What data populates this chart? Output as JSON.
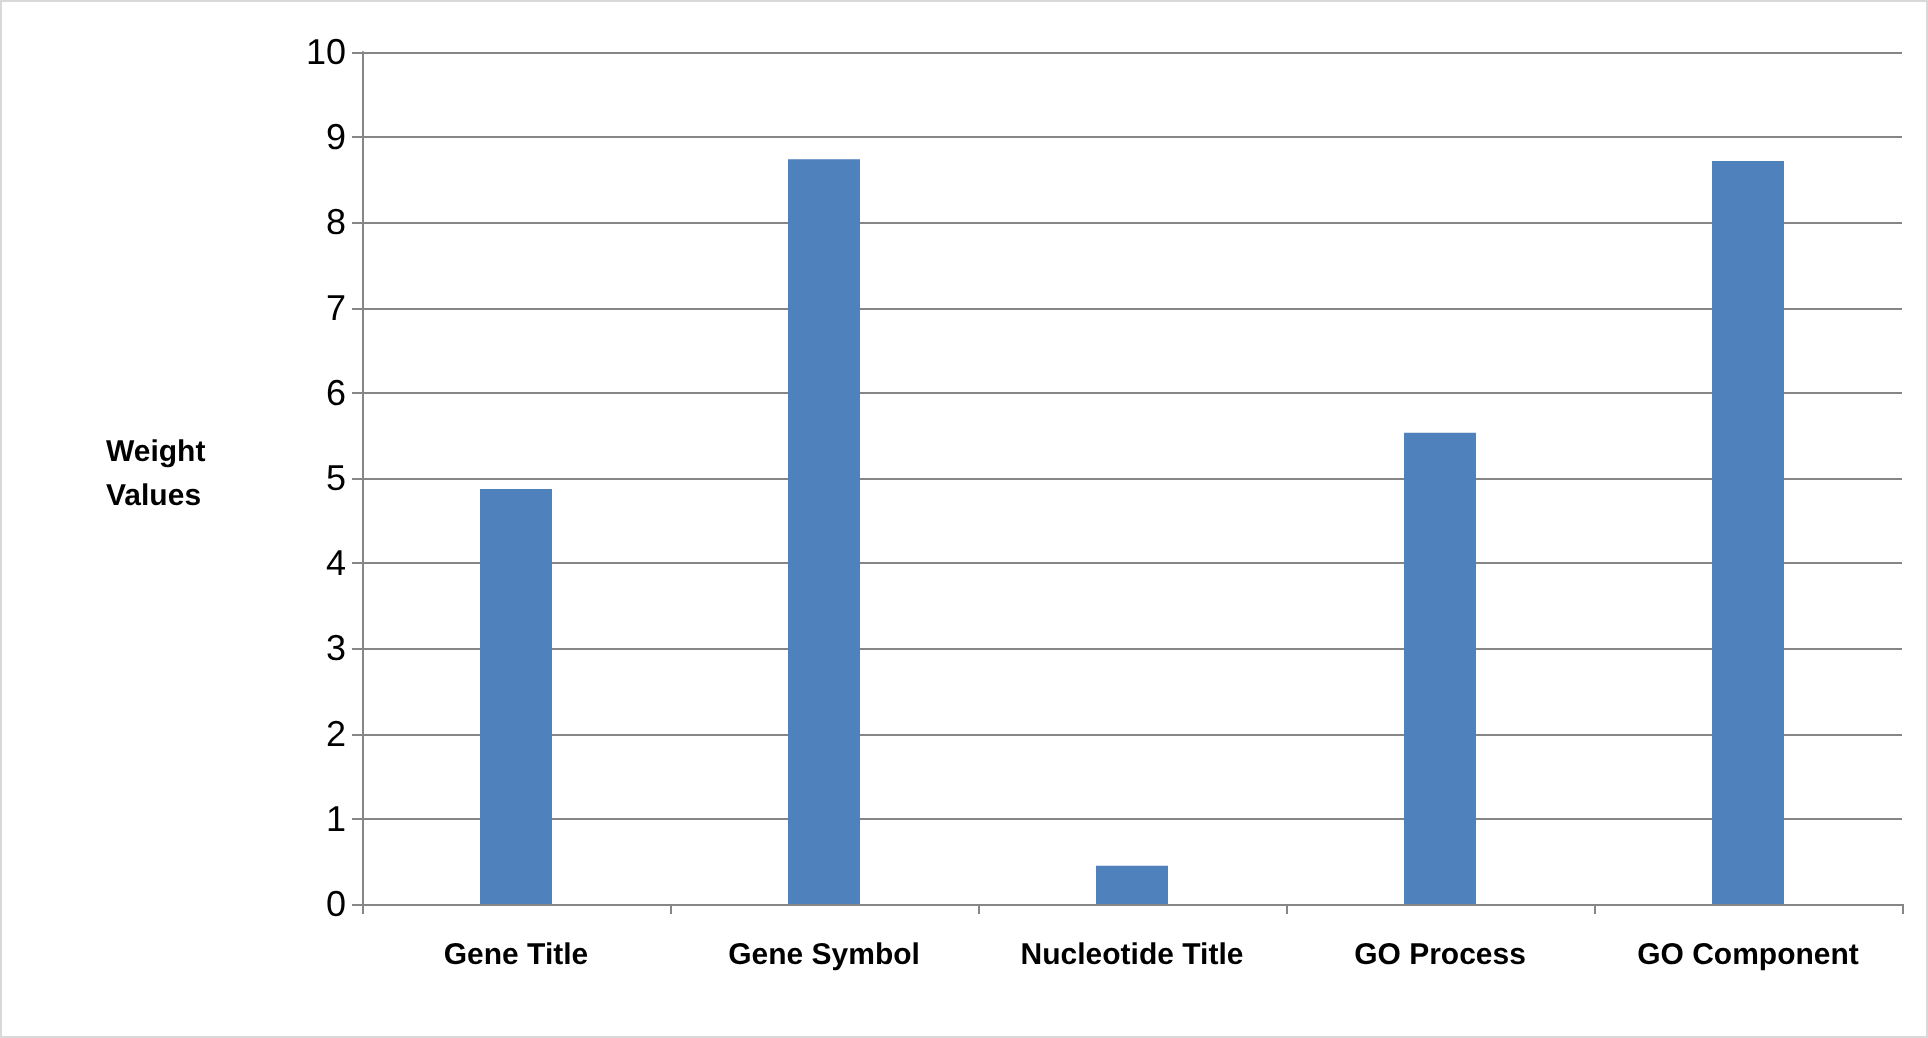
{
  "chart_data": {
    "type": "bar",
    "ylabel": "Weight\nValues",
    "categories": [
      "Gene Title",
      "Gene Symbol",
      "Nucleotide Title",
      "GO Process",
      "GO Component"
    ],
    "values": [
      4.87,
      8.74,
      0.45,
      5.53,
      8.72
    ],
    "color": "#4f81bd",
    "ylim": [
      0,
      10
    ],
    "yticks": [
      0,
      1,
      2,
      3,
      4,
      5,
      6,
      7,
      8,
      9,
      10
    ],
    "grid": "y"
  }
}
